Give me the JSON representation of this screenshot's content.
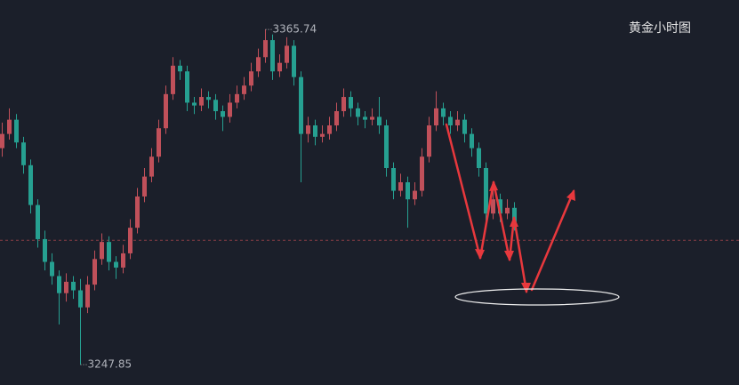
{
  "chart_data": {
    "type": "candlestick",
    "title": "黄金小时图",
    "candles": [
      [
        3324,
        3333,
        3321,
        3329
      ],
      [
        3329,
        3338,
        3327,
        3334
      ],
      [
        3334,
        3336,
        3324,
        3326
      ],
      [
        3326,
        3328,
        3315,
        3318
      ],
      [
        3318,
        3320,
        3301,
        3304
      ],
      [
        3304,
        3306,
        3289,
        3292
      ],
      [
        3292,
        3295,
        3281,
        3284
      ],
      [
        3284,
        3287,
        3276,
        3279
      ],
      [
        3279,
        3281,
        3262,
        3273
      ],
      [
        3273,
        3280,
        3270,
        3277
      ],
      [
        3277,
        3279,
        3271,
        3274
      ],
      [
        3274,
        3278,
        3247.85,
        3268
      ],
      [
        3268,
        3279,
        3266,
        3276
      ],
      [
        3276,
        3288,
        3274,
        3285
      ],
      [
        3285,
        3294,
        3283,
        3291
      ],
      [
        3291,
        3293,
        3281,
        3284
      ],
      [
        3284,
        3286,
        3278,
        3282
      ],
      [
        3282,
        3290,
        3280,
        3287
      ],
      [
        3287,
        3299,
        3285,
        3296
      ],
      [
        3296,
        3310,
        3294,
        3307
      ],
      [
        3307,
        3317,
        3305,
        3314
      ],
      [
        3314,
        3324,
        3312,
        3321
      ],
      [
        3321,
        3334,
        3319,
        3331
      ],
      [
        3331,
        3346,
        3329,
        3343
      ],
      [
        3343,
        3356,
        3341,
        3353
      ],
      [
        3353,
        3355,
        3348,
        3351
      ],
      [
        3351,
        3353,
        3337,
        3340
      ],
      [
        3340,
        3342,
        3336,
        3339
      ],
      [
        3339,
        3345,
        3337,
        3342
      ],
      [
        3342,
        3344,
        3338,
        3341
      ],
      [
        3341,
        3343,
        3334,
        3337
      ],
      [
        3337,
        3339,
        3330,
        3335
      ],
      [
        3335,
        3343,
        3333,
        3340
      ],
      [
        3340,
        3346,
        3338,
        3343
      ],
      [
        3343,
        3349,
        3341,
        3346
      ],
      [
        3346,
        3354,
        3344,
        3351
      ],
      [
        3351,
        3359,
        3349,
        3356
      ],
      [
        3356,
        3365.74,
        3354,
        3362
      ],
      [
        3362,
        3364,
        3348,
        3351
      ],
      [
        3351,
        3357,
        3349,
        3354
      ],
      [
        3354,
        3363,
        3352,
        3360
      ],
      [
        3360,
        3362,
        3346,
        3349
      ],
      [
        3349,
        3351,
        3312,
        3329
      ],
      [
        3329,
        3335,
        3326,
        3332
      ],
      [
        3332,
        3334,
        3325,
        3328
      ],
      [
        3328,
        3332,
        3326,
        3329
      ],
      [
        3329,
        3335,
        3327,
        3332
      ],
      [
        3332,
        3340,
        3330,
        3337
      ],
      [
        3337,
        3345,
        3335,
        3342
      ],
      [
        3342,
        3344,
        3335,
        3338
      ],
      [
        3338,
        3340,
        3332,
        3335
      ],
      [
        3335,
        3337,
        3331,
        3334
      ],
      [
        3334,
        3338,
        3332,
        3335
      ],
      [
        3335,
        3342,
        3329,
        3332
      ],
      [
        3332,
        3334,
        3314,
        3317
      ],
      [
        3317,
        3319,
        3306,
        3309
      ],
      [
        3309,
        3315,
        3307,
        3312
      ],
      [
        3312,
        3314,
        3296,
        3306
      ],
      [
        3306,
        3312,
        3304,
        3309
      ],
      [
        3309,
        3324,
        3307,
        3321
      ],
      [
        3321,
        3335,
        3319,
        3332
      ],
      [
        3332,
        3344,
        3330,
        3338
      ],
      [
        3338,
        3340,
        3332,
        3335
      ],
      [
        3335,
        3337,
        3329,
        3332
      ],
      [
        3332,
        3337,
        3330,
        3334
      ],
      [
        3334,
        3336,
        3326,
        3329
      ],
      [
        3329,
        3331,
        3321,
        3324
      ],
      [
        3324,
        3326,
        3314,
        3317
      ],
      [
        3317,
        3319,
        3298,
        3301
      ],
      [
        3301,
        3309,
        3299,
        3306
      ],
      [
        3306,
        3308,
        3298,
        3301
      ],
      [
        3301,
        3306,
        3299,
        3303
      ],
      [
        3303,
        3305,
        3295,
        3298
      ]
    ],
    "ylim": [
      3240.7,
      3376.1
    ],
    "up_color": "#c0505a",
    "down_color": "#26a091",
    "reference_line": 3291.6
  }
}
